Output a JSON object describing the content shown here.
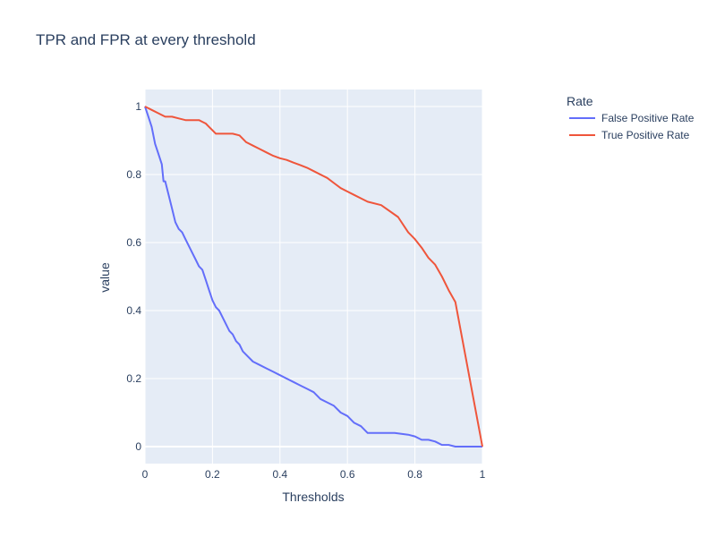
{
  "chart_data": {
    "type": "line",
    "title": "TPR and FPR at every threshold",
    "xlabel": "Thresholds",
    "ylabel": "value",
    "xlim": [
      0,
      1
    ],
    "ylim": [
      -0.05,
      1.05
    ],
    "x_ticks": [
      0,
      0.2,
      0.4,
      0.6,
      0.8,
      1
    ],
    "x_tick_labels": [
      "0",
      "0.2",
      "0.4",
      "0.6",
      "0.8",
      "1"
    ],
    "y_ticks": [
      0,
      0.2,
      0.4,
      0.6,
      0.8,
      1
    ],
    "y_tick_labels": [
      "0",
      "0.2",
      "0.4",
      "0.6",
      "0.8",
      "1"
    ],
    "grid": true,
    "legend": {
      "title": "Rate",
      "position": "top-right"
    },
    "plot_background": "#e5ecf6",
    "series": [
      {
        "name": "False Positive Rate",
        "color": "#636efa",
        "x": [
          0,
          0.01,
          0.02,
          0.03,
          0.04,
          0.05,
          0.055,
          0.06,
          0.07,
          0.08,
          0.09,
          0.1,
          0.11,
          0.12,
          0.13,
          0.14,
          0.15,
          0.16,
          0.17,
          0.18,
          0.19,
          0.2,
          0.21,
          0.22,
          0.23,
          0.24,
          0.25,
          0.26,
          0.27,
          0.28,
          0.29,
          0.3,
          0.32,
          0.34,
          0.36,
          0.38,
          0.4,
          0.42,
          0.44,
          0.46,
          0.48,
          0.5,
          0.52,
          0.54,
          0.56,
          0.58,
          0.6,
          0.62,
          0.64,
          0.66,
          0.7,
          0.74,
          0.78,
          0.8,
          0.82,
          0.84,
          0.86,
          0.88,
          0.9,
          0.92,
          1.0
        ],
        "y": [
          1.0,
          0.97,
          0.94,
          0.89,
          0.86,
          0.83,
          0.78,
          0.78,
          0.74,
          0.7,
          0.66,
          0.64,
          0.63,
          0.61,
          0.59,
          0.57,
          0.55,
          0.53,
          0.52,
          0.49,
          0.46,
          0.43,
          0.41,
          0.4,
          0.38,
          0.36,
          0.34,
          0.33,
          0.31,
          0.3,
          0.28,
          0.27,
          0.25,
          0.24,
          0.23,
          0.22,
          0.21,
          0.2,
          0.19,
          0.18,
          0.17,
          0.16,
          0.14,
          0.13,
          0.12,
          0.1,
          0.09,
          0.07,
          0.06,
          0.04,
          0.04,
          0.04,
          0.035,
          0.03,
          0.02,
          0.02,
          0.015,
          0.005,
          0.005,
          0.0,
          0.0
        ]
      },
      {
        "name": "True Positive Rate",
        "color": "#ef553b",
        "x": [
          0,
          0.02,
          0.04,
          0.05,
          0.06,
          0.08,
          0.1,
          0.12,
          0.14,
          0.16,
          0.17,
          0.18,
          0.19,
          0.2,
          0.21,
          0.22,
          0.24,
          0.26,
          0.28,
          0.29,
          0.3,
          0.32,
          0.34,
          0.36,
          0.38,
          0.4,
          0.42,
          0.44,
          0.46,
          0.48,
          0.5,
          0.52,
          0.54,
          0.56,
          0.58,
          0.6,
          0.62,
          0.64,
          0.66,
          0.7,
          0.75,
          0.78,
          0.8,
          0.82,
          0.84,
          0.86,
          0.88,
          0.9,
          0.92,
          1.0
        ],
        "y": [
          1.0,
          0.99,
          0.98,
          0.975,
          0.97,
          0.97,
          0.965,
          0.96,
          0.96,
          0.96,
          0.955,
          0.95,
          0.94,
          0.93,
          0.92,
          0.92,
          0.92,
          0.92,
          0.915,
          0.905,
          0.895,
          0.885,
          0.875,
          0.865,
          0.855,
          0.848,
          0.843,
          0.835,
          0.828,
          0.82,
          0.81,
          0.8,
          0.79,
          0.775,
          0.76,
          0.75,
          0.74,
          0.73,
          0.72,
          0.71,
          0.675,
          0.63,
          0.61,
          0.585,
          0.555,
          0.535,
          0.5,
          0.46,
          0.425,
          0.0
        ]
      }
    ]
  }
}
